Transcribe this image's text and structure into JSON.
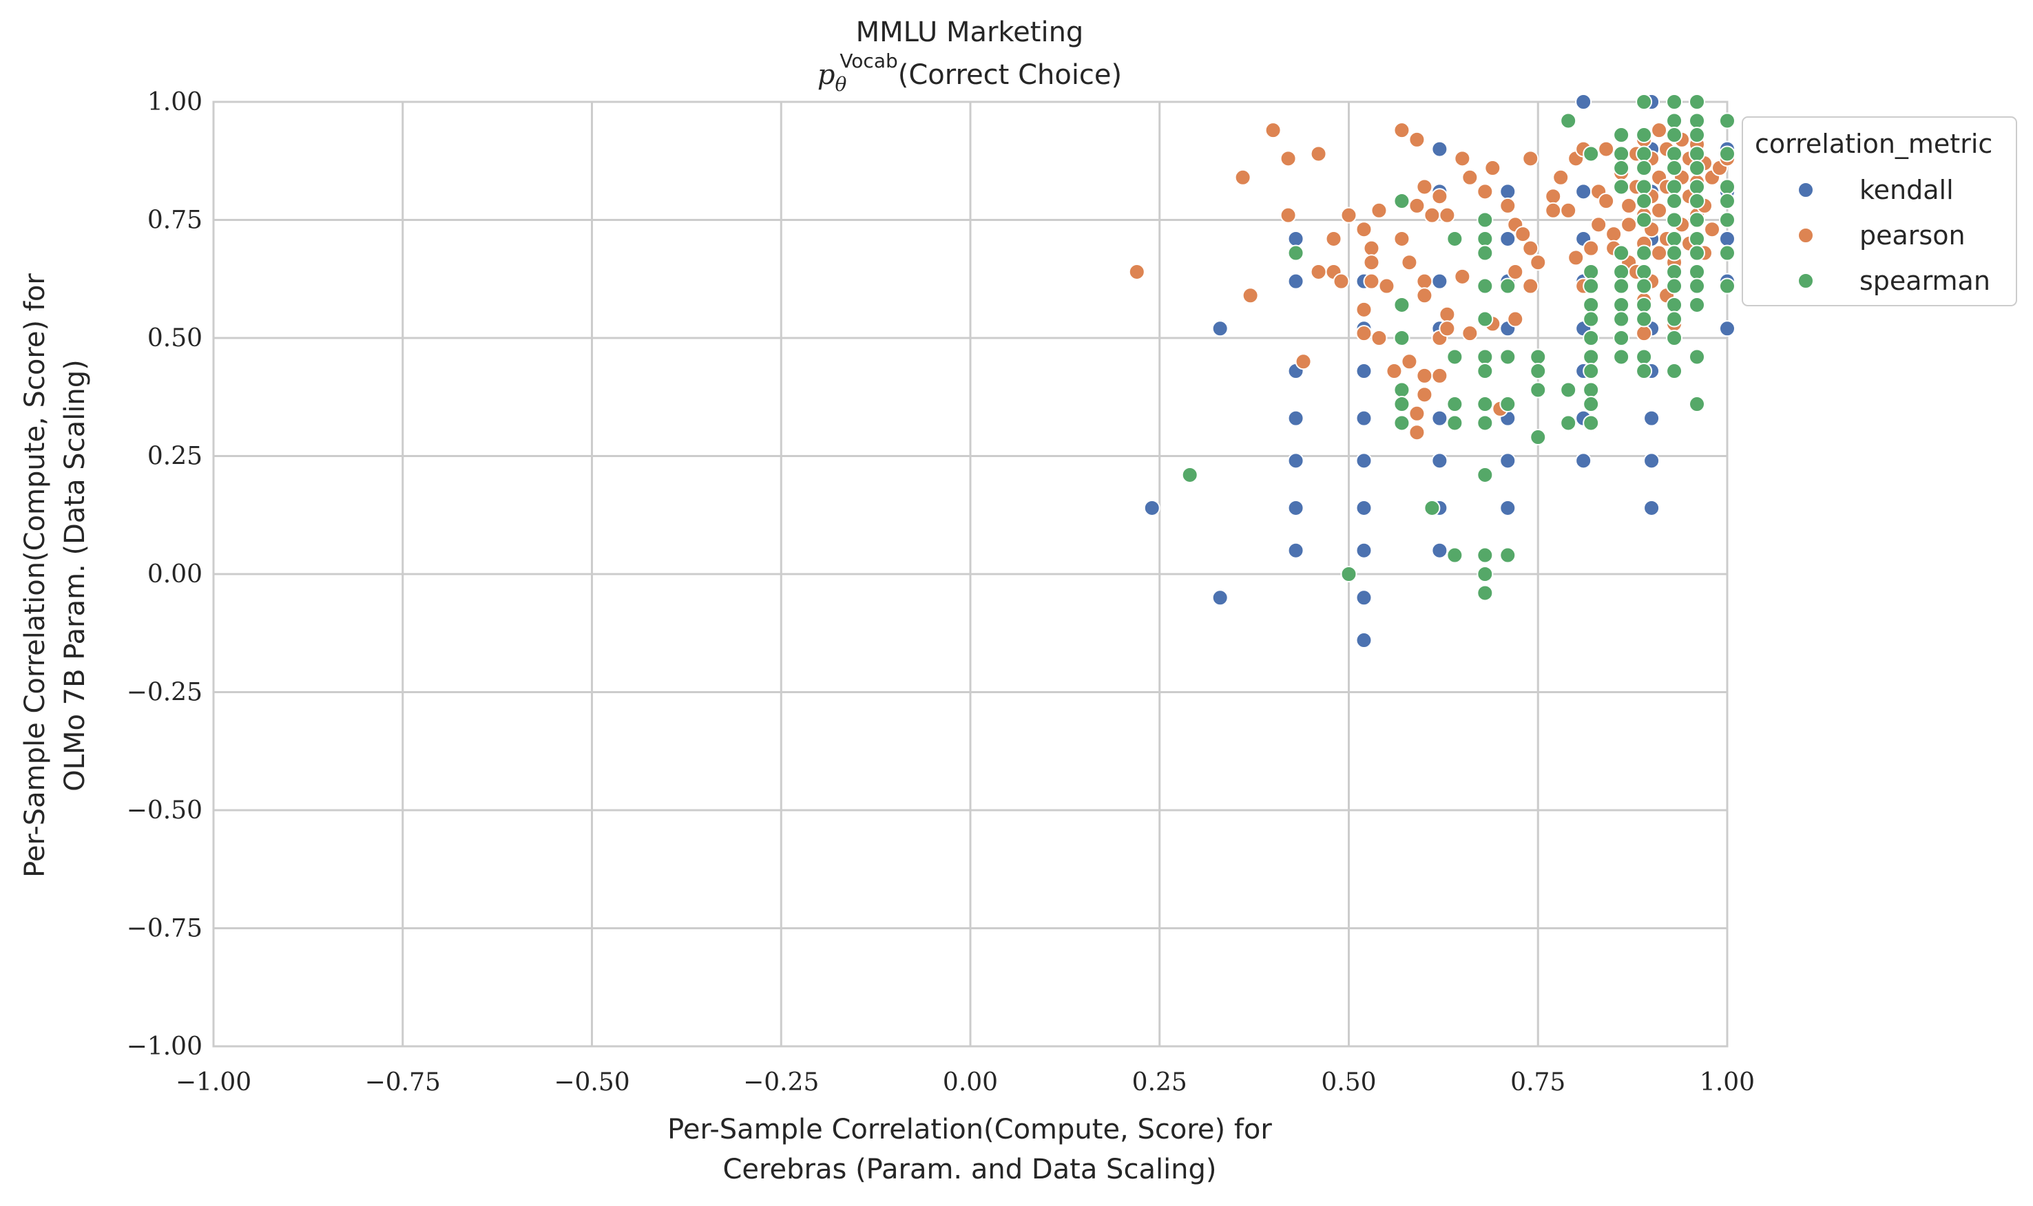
{
  "chart_data": {
    "type": "scatter",
    "title_line1": "MMLU Marketing",
    "title_math": "p",
    "title_math_sub": "θ",
    "title_math_sup": "Vocab",
    "title_rest": "(Correct Choice)",
    "xlabel_line1": "Per-Sample Correlation(Compute, Score) for",
    "xlabel_line2": "Cerebras (Param. and Data Scaling)",
    "ylabel_line1": "Per-Sample Correlation(Compute, Score) for",
    "ylabel_line2": "OLMo 7B Param. (Data Scaling)",
    "xlim": [
      -1.0,
      1.0
    ],
    "ylim": [
      -1.0,
      1.0
    ],
    "xticks": [
      -1.0,
      -0.75,
      -0.5,
      -0.25,
      0.0,
      0.25,
      0.5,
      0.75,
      1.0
    ],
    "yticks": [
      -1.0,
      -0.75,
      -0.5,
      -0.25,
      0.0,
      0.25,
      0.5,
      0.75,
      1.0
    ],
    "xtick_labels": [
      "−1.00",
      "−0.75",
      "−0.50",
      "−0.25",
      "0.00",
      "0.25",
      "0.50",
      "0.75",
      "1.00"
    ],
    "ytick_labels": [
      "−1.00",
      "−0.75",
      "−0.50",
      "−0.25",
      "0.00",
      "0.25",
      "0.50",
      "0.75",
      "1.00"
    ],
    "grid": true,
    "legend_title": "correlation_metric",
    "legend_placement": "outside-top-right",
    "series": [
      {
        "name": "kendall",
        "color": "#4c72b0",
        "points": [
          [
            0.24,
            0.14
          ],
          [
            0.33,
            0.52
          ],
          [
            0.33,
            -0.05
          ],
          [
            0.43,
            0.71
          ],
          [
            0.43,
            0.62
          ],
          [
            0.43,
            0.43
          ],
          [
            0.43,
            0.33
          ],
          [
            0.43,
            0.24
          ],
          [
            0.43,
            0.14
          ],
          [
            0.43,
            0.05
          ],
          [
            0.52,
            0.62
          ],
          [
            0.52,
            0.52
          ],
          [
            0.52,
            0.43
          ],
          [
            0.52,
            0.33
          ],
          [
            0.52,
            0.24
          ],
          [
            0.52,
            0.14
          ],
          [
            0.52,
            0.05
          ],
          [
            0.52,
            -0.05
          ],
          [
            0.52,
            -0.14
          ],
          [
            0.62,
            0.9
          ],
          [
            0.62,
            0.81
          ],
          [
            0.62,
            0.62
          ],
          [
            0.62,
            0.52
          ],
          [
            0.62,
            0.33
          ],
          [
            0.62,
            0.24
          ],
          [
            0.62,
            0.14
          ],
          [
            0.62,
            0.05
          ],
          [
            0.71,
            0.81
          ],
          [
            0.71,
            0.71
          ],
          [
            0.71,
            0.62
          ],
          [
            0.71,
            0.52
          ],
          [
            0.71,
            0.33
          ],
          [
            0.71,
            0.24
          ],
          [
            0.71,
            0.14
          ],
          [
            0.81,
            1.0
          ],
          [
            0.81,
            0.81
          ],
          [
            0.81,
            0.71
          ],
          [
            0.81,
            0.62
          ],
          [
            0.81,
            0.52
          ],
          [
            0.81,
            0.43
          ],
          [
            0.81,
            0.33
          ],
          [
            0.81,
            0.24
          ],
          [
            0.9,
            1.0
          ],
          [
            0.9,
            0.9
          ],
          [
            0.9,
            0.81
          ],
          [
            0.9,
            0.71
          ],
          [
            0.9,
            0.62
          ],
          [
            0.9,
            0.52
          ],
          [
            0.9,
            0.43
          ],
          [
            0.9,
            0.33
          ],
          [
            0.9,
            0.24
          ],
          [
            0.9,
            0.14
          ],
          [
            1.0,
            0.9
          ],
          [
            1.0,
            0.81
          ],
          [
            1.0,
            0.71
          ],
          [
            1.0,
            0.62
          ],
          [
            1.0,
            0.52
          ]
        ]
      },
      {
        "name": "pearson",
        "color": "#dd8452",
        "points": [
          [
            0.22,
            0.64
          ],
          [
            0.36,
            0.84
          ],
          [
            0.37,
            0.59
          ],
          [
            0.4,
            0.94
          ],
          [
            0.42,
            0.88
          ],
          [
            0.42,
            0.76
          ],
          [
            0.44,
            0.45
          ],
          [
            0.46,
            0.64
          ],
          [
            0.46,
            0.89
          ],
          [
            0.48,
            0.71
          ],
          [
            0.48,
            0.64
          ],
          [
            0.49,
            0.62
          ],
          [
            0.5,
            0.76
          ],
          [
            0.52,
            0.73
          ],
          [
            0.52,
            0.56
          ],
          [
            0.52,
            0.51
          ],
          [
            0.53,
            0.69
          ],
          [
            0.53,
            0.66
          ],
          [
            0.53,
            0.62
          ],
          [
            0.54,
            0.77
          ],
          [
            0.54,
            0.5
          ],
          [
            0.55,
            0.61
          ],
          [
            0.56,
            0.43
          ],
          [
            0.57,
            0.94
          ],
          [
            0.57,
            0.71
          ],
          [
            0.58,
            0.66
          ],
          [
            0.58,
            0.45
          ],
          [
            0.59,
            0.92
          ],
          [
            0.59,
            0.78
          ],
          [
            0.59,
            0.34
          ],
          [
            0.59,
            0.3
          ],
          [
            0.6,
            0.82
          ],
          [
            0.6,
            0.62
          ],
          [
            0.6,
            0.59
          ],
          [
            0.6,
            0.42
          ],
          [
            0.6,
            0.38
          ],
          [
            0.61,
            0.76
          ],
          [
            0.62,
            0.8
          ],
          [
            0.62,
            0.5
          ],
          [
            0.62,
            0.42
          ],
          [
            0.63,
            0.76
          ],
          [
            0.63,
            0.55
          ],
          [
            0.63,
            0.52
          ],
          [
            0.64,
            0.46
          ],
          [
            0.65,
            0.88
          ],
          [
            0.65,
            0.63
          ],
          [
            0.66,
            0.84
          ],
          [
            0.66,
            0.51
          ],
          [
            0.68,
            0.81
          ],
          [
            0.69,
            0.86
          ],
          [
            0.69,
            0.53
          ],
          [
            0.7,
            0.35
          ],
          [
            0.71,
            0.78
          ],
          [
            0.72,
            0.74
          ],
          [
            0.72,
            0.64
          ],
          [
            0.72,
            0.54
          ],
          [
            0.73,
            0.72
          ],
          [
            0.74,
            0.88
          ],
          [
            0.74,
            0.69
          ],
          [
            0.74,
            0.61
          ],
          [
            0.75,
            0.66
          ],
          [
            0.77,
            0.8
          ],
          [
            0.77,
            0.77
          ],
          [
            0.78,
            0.84
          ],
          [
            0.79,
            0.77
          ],
          [
            0.8,
            0.88
          ],
          [
            0.8,
            0.67
          ],
          [
            0.81,
            0.9
          ],
          [
            0.81,
            0.61
          ],
          [
            0.82,
            0.69
          ],
          [
            0.83,
            0.81
          ],
          [
            0.83,
            0.74
          ],
          [
            0.84,
            0.9
          ],
          [
            0.84,
            0.79
          ],
          [
            0.85,
            0.72
          ],
          [
            0.85,
            0.69
          ],
          [
            0.86,
            0.93
          ],
          [
            0.86,
            0.85
          ],
          [
            0.87,
            0.78
          ],
          [
            0.87,
            0.74
          ],
          [
            0.87,
            0.66
          ],
          [
            0.88,
            0.89
          ],
          [
            0.88,
            0.82
          ],
          [
            0.88,
            0.64
          ],
          [
            0.89,
            0.92
          ],
          [
            0.89,
            0.86
          ],
          [
            0.89,
            0.76
          ],
          [
            0.89,
            0.7
          ],
          [
            0.89,
            0.58
          ],
          [
            0.89,
            0.51
          ],
          [
            0.9,
            0.88
          ],
          [
            0.9,
            0.8
          ],
          [
            0.9,
            0.73
          ],
          [
            0.9,
            0.62
          ],
          [
            0.91,
            0.94
          ],
          [
            0.91,
            0.84
          ],
          [
            0.91,
            0.77
          ],
          [
            0.91,
            0.68
          ],
          [
            0.92,
            0.9
          ],
          [
            0.92,
            0.82
          ],
          [
            0.92,
            0.71
          ],
          [
            0.92,
            0.59
          ],
          [
            0.93,
            0.86
          ],
          [
            0.93,
            0.79
          ],
          [
            0.93,
            0.66
          ],
          [
            0.93,
            0.53
          ],
          [
            0.94,
            0.92
          ],
          [
            0.94,
            0.84
          ],
          [
            0.94,
            0.74
          ],
          [
            0.95,
            0.88
          ],
          [
            0.95,
            0.8
          ],
          [
            0.95,
            0.7
          ],
          [
            0.96,
            0.91
          ],
          [
            0.96,
            0.83
          ],
          [
            0.96,
            0.76
          ],
          [
            0.97,
            0.87
          ],
          [
            0.97,
            0.78
          ],
          [
            0.97,
            0.68
          ],
          [
            0.98,
            0.84
          ],
          [
            0.98,
            0.73
          ],
          [
            0.99,
            0.86
          ],
          [
            1.0,
            0.88
          ]
        ]
      },
      {
        "name": "spearman",
        "color": "#55a868",
        "points": [
          [
            0.29,
            0.21
          ],
          [
            0.43,
            0.68
          ],
          [
            0.5,
            0.0
          ],
          [
            0.57,
            0.79
          ],
          [
            0.57,
            0.57
          ],
          [
            0.57,
            0.5
          ],
          [
            0.57,
            0.39
          ],
          [
            0.57,
            0.36
          ],
          [
            0.57,
            0.32
          ],
          [
            0.61,
            0.14
          ],
          [
            0.64,
            0.71
          ],
          [
            0.64,
            0.46
          ],
          [
            0.64,
            0.36
          ],
          [
            0.64,
            0.32
          ],
          [
            0.64,
            0.04
          ],
          [
            0.68,
            0.75
          ],
          [
            0.68,
            0.71
          ],
          [
            0.68,
            0.68
          ],
          [
            0.68,
            0.61
          ],
          [
            0.68,
            0.54
          ],
          [
            0.68,
            0.46
          ],
          [
            0.68,
            0.43
          ],
          [
            0.68,
            0.36
          ],
          [
            0.68,
            0.32
          ],
          [
            0.68,
            0.21
          ],
          [
            0.68,
            0.04
          ],
          [
            0.68,
            0.0
          ],
          [
            0.68,
            -0.04
          ],
          [
            0.71,
            0.61
          ],
          [
            0.71,
            0.46
          ],
          [
            0.71,
            0.36
          ],
          [
            0.71,
            0.04
          ],
          [
            0.75,
            0.46
          ],
          [
            0.75,
            0.43
          ],
          [
            0.75,
            0.39
          ],
          [
            0.75,
            0.29
          ],
          [
            0.79,
            0.96
          ],
          [
            0.79,
            0.39
          ],
          [
            0.79,
            0.32
          ],
          [
            0.82,
            0.89
          ],
          [
            0.82,
            0.64
          ],
          [
            0.82,
            0.61
          ],
          [
            0.82,
            0.57
          ],
          [
            0.82,
            0.54
          ],
          [
            0.82,
            0.5
          ],
          [
            0.82,
            0.46
          ],
          [
            0.82,
            0.43
          ],
          [
            0.82,
            0.39
          ],
          [
            0.82,
            0.36
          ],
          [
            0.82,
            0.32
          ],
          [
            0.86,
            0.93
          ],
          [
            0.86,
            0.89
          ],
          [
            0.86,
            0.86
          ],
          [
            0.86,
            0.82
          ],
          [
            0.86,
            0.68
          ],
          [
            0.86,
            0.64
          ],
          [
            0.86,
            0.61
          ],
          [
            0.86,
            0.57
          ],
          [
            0.86,
            0.54
          ],
          [
            0.86,
            0.5
          ],
          [
            0.86,
            0.46
          ],
          [
            0.89,
            1.0
          ],
          [
            0.89,
            0.93
          ],
          [
            0.89,
            0.89
          ],
          [
            0.89,
            0.86
          ],
          [
            0.89,
            0.82
          ],
          [
            0.89,
            0.79
          ],
          [
            0.89,
            0.75
          ],
          [
            0.89,
            0.68
          ],
          [
            0.89,
            0.64
          ],
          [
            0.89,
            0.61
          ],
          [
            0.89,
            0.57
          ],
          [
            0.89,
            0.54
          ],
          [
            0.89,
            0.46
          ],
          [
            0.89,
            0.43
          ],
          [
            0.93,
            1.0
          ],
          [
            0.93,
            0.96
          ],
          [
            0.93,
            0.93
          ],
          [
            0.93,
            0.89
          ],
          [
            0.93,
            0.86
          ],
          [
            0.93,
            0.82
          ],
          [
            0.93,
            0.79
          ],
          [
            0.93,
            0.75
          ],
          [
            0.93,
            0.71
          ],
          [
            0.93,
            0.68
          ],
          [
            0.93,
            0.64
          ],
          [
            0.93,
            0.61
          ],
          [
            0.93,
            0.57
          ],
          [
            0.93,
            0.54
          ],
          [
            0.93,
            0.5
          ],
          [
            0.93,
            0.43
          ],
          [
            0.96,
            1.0
          ],
          [
            0.96,
            0.96
          ],
          [
            0.96,
            0.93
          ],
          [
            0.96,
            0.89
          ],
          [
            0.96,
            0.86
          ],
          [
            0.96,
            0.82
          ],
          [
            0.96,
            0.79
          ],
          [
            0.96,
            0.75
          ],
          [
            0.96,
            0.71
          ],
          [
            0.96,
            0.68
          ],
          [
            0.96,
            0.64
          ],
          [
            0.96,
            0.61
          ],
          [
            0.96,
            0.57
          ],
          [
            0.96,
            0.46
          ],
          [
            0.96,
            0.36
          ],
          [
            1.0,
            0.96
          ],
          [
            1.0,
            0.89
          ],
          [
            1.0,
            0.82
          ],
          [
            1.0,
            0.79
          ],
          [
            1.0,
            0.75
          ],
          [
            1.0,
            0.68
          ],
          [
            1.0,
            0.61
          ]
        ]
      }
    ]
  }
}
